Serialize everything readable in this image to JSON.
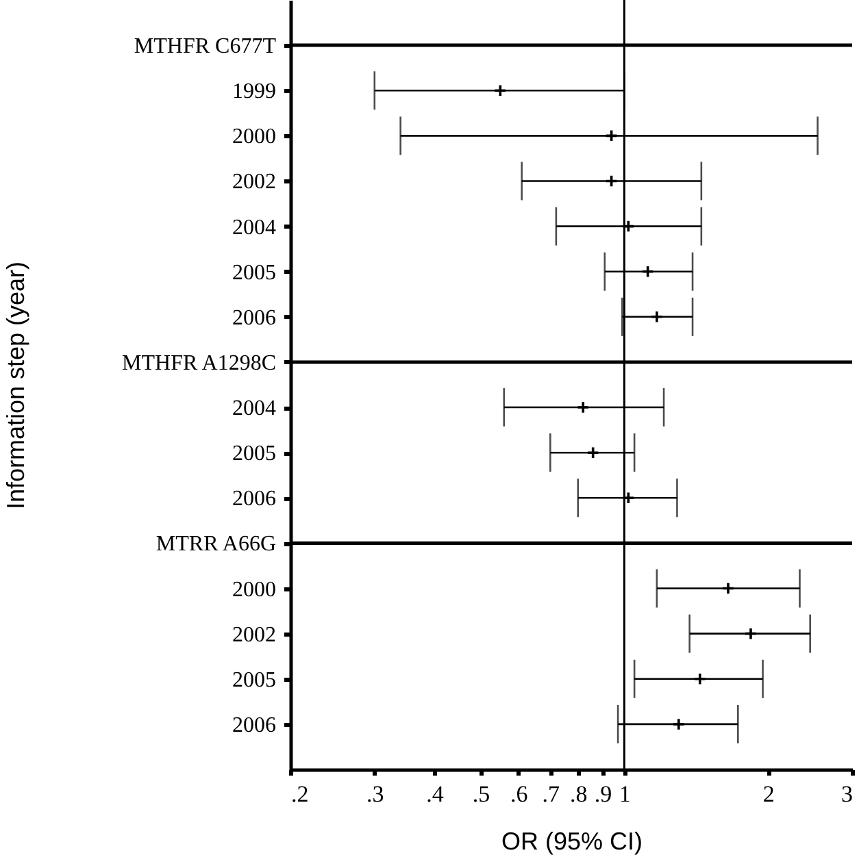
{
  "chart_data": {
    "type": "scatter",
    "orientation": "horizontal",
    "xlabel": "OR (95% CI)",
    "ylabel": "Information step (year)",
    "categories": [
      "MTHFR C677T",
      "1999",
      "2000",
      "2002",
      "2004",
      "2005",
      "2006",
      "MTHFR A1298C",
      "2004",
      "2005",
      "2006",
      "MTRR A66G",
      "2000",
      "2002",
      "2005",
      "2006"
    ],
    "values": [
      null,
      0.55,
      0.94,
      0.94,
      1.02,
      1.12,
      1.17,
      null,
      0.82,
      0.86,
      1.02,
      null,
      1.65,
      1.84,
      1.44,
      1.3
    ],
    "errors": [
      null,
      [
        0.3,
        1.0
      ],
      [
        0.34,
        2.54
      ],
      [
        0.61,
        1.45
      ],
      [
        0.72,
        1.45
      ],
      [
        0.91,
        1.39
      ],
      [
        0.99,
        1.39
      ],
      null,
      [
        0.56,
        1.21
      ],
      [
        0.7,
        1.05
      ],
      [
        0.8,
        1.29
      ],
      null,
      [
        1.17,
        2.33
      ],
      [
        1.37,
        2.45
      ],
      [
        1.05,
        1.95
      ],
      [
        0.97,
        1.73
      ]
    ],
    "color": "#000000",
    "marker": "cross",
    "log": "x",
    "grid": false,
    "xlim": [
      0.2,
      3
    ],
    "xticks": [
      {
        "value": 0.2,
        "label": ".2"
      },
      {
        "value": 0.3,
        "label": ".3"
      },
      {
        "value": 0.4,
        "label": ".4"
      },
      {
        "value": 0.5,
        "label": ".5"
      },
      {
        "value": 0.6,
        "label": ".6"
      },
      {
        "value": 0.7,
        "label": ".7"
      },
      {
        "value": 0.8,
        "label": ".8"
      },
      {
        "value": 0.9,
        "label": ".9"
      },
      1,
      2,
      3
    ],
    "ref_lines": [
      {
        "axis": "x",
        "value": 1
      },
      {
        "axis": "y",
        "value": "MTHFR C677T"
      },
      {
        "axis": "y",
        "value": "MTHFR A1298C"
      },
      {
        "axis": "y",
        "value": "MTRR A66G"
      }
    ]
  }
}
